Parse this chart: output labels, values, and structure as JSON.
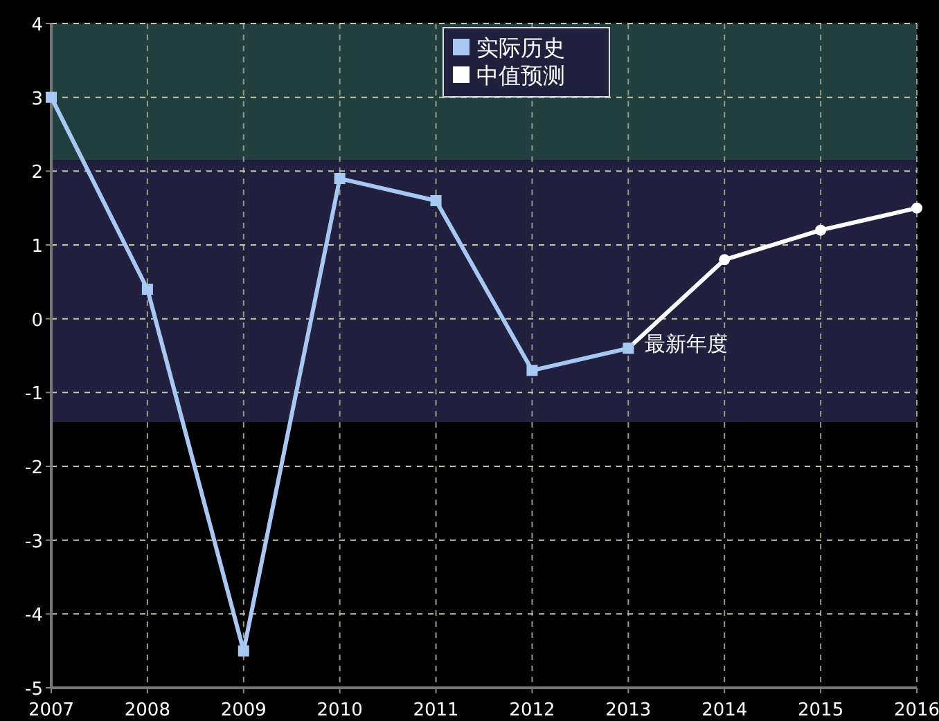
{
  "chart_data": {
    "type": "line",
    "xlim": [
      2007,
      2016
    ],
    "xticks": [
      2007,
      2008,
      2009,
      2010,
      2011,
      2012,
      2013,
      2014,
      2015,
      2016
    ],
    "ylim": [
      -5,
      4
    ],
    "yticks": [
      -5,
      -4,
      -3,
      -2,
      -1,
      0,
      1,
      2,
      3,
      4
    ],
    "grid": true,
    "legend": "top",
    "line_style": "solid",
    "bands": [
      {
        "axis": "y",
        "from": 2.15,
        "to": 4,
        "color": "#213f3f"
      },
      {
        "axis": "y",
        "from": -1.4,
        "to": 2.15,
        "color": "#21213f"
      }
    ],
    "series": [
      {
        "name": "实际历史",
        "color": "#a6c8f2",
        "marker": "square",
        "x": [
          2007,
          2008,
          2009,
          2010,
          2011,
          2012,
          2013
        ],
        "values": [
          3,
          0.4,
          -4.5,
          1.9,
          1.6,
          -0.7,
          -0.4
        ]
      },
      {
        "name": "中值预测",
        "color": "#ffffff",
        "marker": "circle",
        "x": [
          2013,
          2014,
          2015,
          2016
        ],
        "values": [
          -0.4,
          0.8,
          1.2,
          1.5
        ]
      }
    ],
    "annotations": [
      {
        "text": "最新年度",
        "x": 2013,
        "y": -0.4
      }
    ]
  }
}
